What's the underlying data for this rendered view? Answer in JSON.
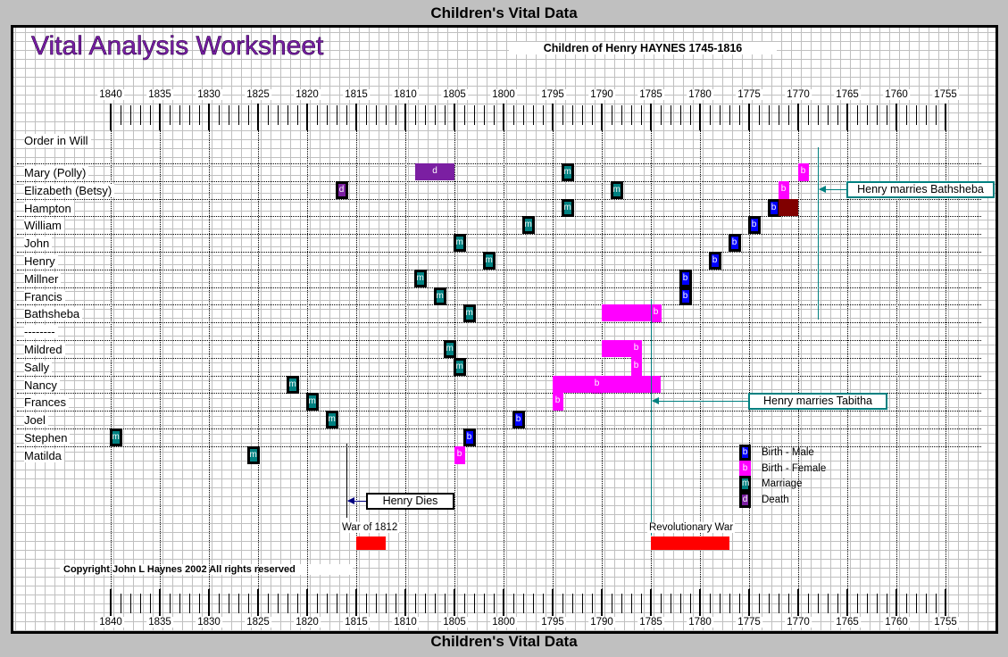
{
  "header": {
    "band_top": "Children's Vital Data",
    "band_bottom": "Children's Vital Data"
  },
  "title": "Vital Analysis Worksheet",
  "subtitle": "Children of Henry HAYNES 1745-1816",
  "order_label": "Order in Will",
  "copyright": "Copyright John L Haynes 2002 All rights reserved",
  "colors": {
    "birth_male": "#0000ff",
    "birth_female": "#ff00ff",
    "marriage": "#008080",
    "death": "#7b1fa2",
    "war": "#ff0000",
    "other": "#800000",
    "annotation": "#008080"
  },
  "chart_data": {
    "type": "timeline",
    "x_ticks": [
      1840,
      1835,
      1830,
      1825,
      1820,
      1815,
      1810,
      1805,
      1800,
      1795,
      1790,
      1785,
      1780,
      1775,
      1770,
      1765,
      1760,
      1755
    ],
    "xlim": [
      1840,
      1752
    ],
    "x_reversed": true,
    "rows": [
      {
        "name": "Mary (Polly)",
        "events": [
          {
            "type": "d",
            "start": 1809,
            "end": 1805
          },
          {
            "type": "m",
            "year": 1793.5
          },
          {
            "type": "bf",
            "year": 1769.5
          }
        ]
      },
      {
        "name": "Elizabeth (Betsy)",
        "events": [
          {
            "type": "d",
            "year": 1816.5
          },
          {
            "type": "m",
            "year": 1788.5
          },
          {
            "type": "bf",
            "year": 1771.5
          }
        ]
      },
      {
        "name": "Hampton",
        "events": [
          {
            "type": "m",
            "year": 1793.5
          },
          {
            "type": "bm",
            "year": 1772.5
          },
          {
            "type": "x",
            "start": 1772,
            "end": 1770
          }
        ]
      },
      {
        "name": "William",
        "events": [
          {
            "type": "m",
            "year": 1797.5
          },
          {
            "type": "bm",
            "year": 1774.5
          }
        ]
      },
      {
        "name": "John",
        "events": [
          {
            "type": "m",
            "year": 1804.5
          },
          {
            "type": "bm",
            "year": 1776.5
          }
        ]
      },
      {
        "name": "Henry",
        "events": [
          {
            "type": "m",
            "year": 1801.5
          },
          {
            "type": "bm",
            "year": 1778.5
          }
        ]
      },
      {
        "name": "Millner",
        "events": [
          {
            "type": "m",
            "year": 1808.5
          },
          {
            "type": "bm",
            "year": 1781.5
          }
        ]
      },
      {
        "name": "Francis",
        "events": [
          {
            "type": "m",
            "year": 1806.5
          },
          {
            "type": "bm",
            "year": 1781.5
          }
        ]
      },
      {
        "name": "Bathsheba",
        "events": [
          {
            "type": "m",
            "year": 1803.5
          },
          {
            "type": "bfr",
            "start": 1790,
            "end": 1784,
            "year": 1784.5
          }
        ]
      },
      {
        "name": "--------",
        "events": []
      },
      {
        "name": "Mildred",
        "events": [
          {
            "type": "m",
            "year": 1805.5
          },
          {
            "type": "bfr",
            "start": 1790,
            "end": 1786,
            "year": 1786.5
          }
        ]
      },
      {
        "name": "Sally",
        "events": [
          {
            "type": "m",
            "year": 1804.5
          },
          {
            "type": "bf",
            "year": 1786.5
          }
        ]
      },
      {
        "name": "Nancy",
        "events": [
          {
            "type": "m",
            "year": 1821.5
          },
          {
            "type": "bfr",
            "start": 1795,
            "end": 1784,
            "year": 1790.5
          }
        ]
      },
      {
        "name": "Frances",
        "events": [
          {
            "type": "m",
            "year": 1819.5
          },
          {
            "type": "bf",
            "year": 1794.5
          }
        ]
      },
      {
        "name": "Joel",
        "events": [
          {
            "type": "m",
            "year": 1817.5
          },
          {
            "type": "bm",
            "year": 1798.5
          }
        ]
      },
      {
        "name": "Stephen",
        "events": [
          {
            "type": "m",
            "year": 1839.5
          },
          {
            "type": "bm",
            "year": 1803.5
          }
        ]
      },
      {
        "name": "Matilda",
        "events": [
          {
            "type": "m",
            "year": 1825.5
          },
          {
            "type": "bf",
            "year": 1804.5
          }
        ]
      }
    ],
    "annotations": [
      {
        "text": "Henry marries Bathsheba",
        "year": 1768
      },
      {
        "text": "Henry marries Tabitha",
        "year": 1785
      },
      {
        "text": "Henry Dies",
        "year": 1816
      }
    ],
    "wars": [
      {
        "name": "War of 1812",
        "start": 1815,
        "end": 1812
      },
      {
        "name": "Revolutionary War",
        "start": 1785,
        "end": 1777
      }
    ],
    "legend": [
      {
        "type": "bm",
        "letter": "b",
        "label": "Birth - Male"
      },
      {
        "type": "bf",
        "letter": "b",
        "label": "Birth - Female"
      },
      {
        "type": "m",
        "letter": "m",
        "label": "Marriage"
      },
      {
        "type": "d",
        "letter": "d",
        "label": "Death"
      }
    ]
  }
}
